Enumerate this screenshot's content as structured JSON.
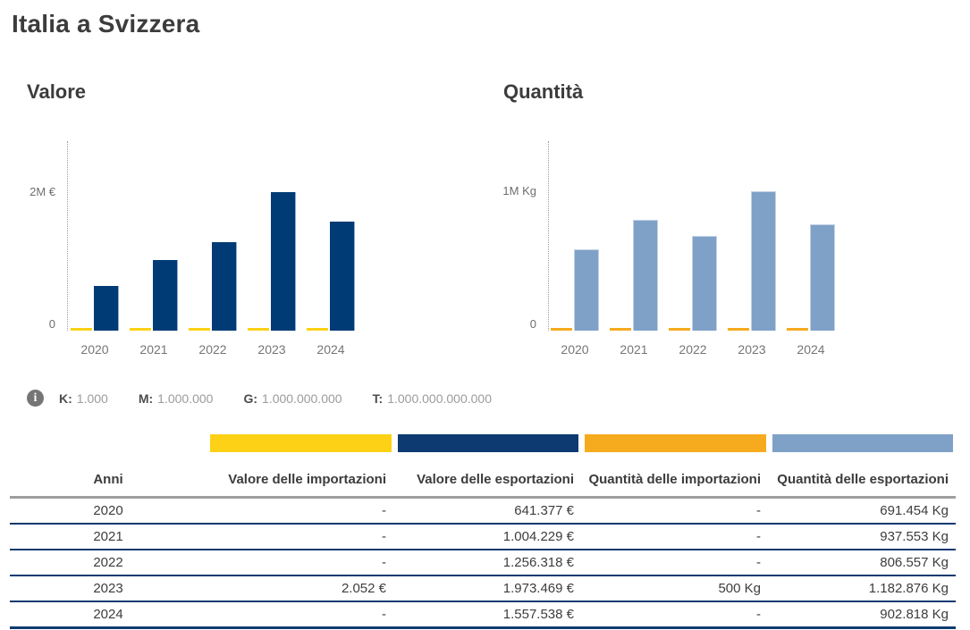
{
  "page": {
    "title": "Italia a Svizzera"
  },
  "chart_data": [
    {
      "type": "bar",
      "title": "Valore",
      "categories": [
        "2020",
        "2021",
        "2022",
        "2023",
        "2024"
      ],
      "series": [
        {
          "name": "Valore delle importazioni",
          "color": "#fcd116",
          "values": [
            null,
            null,
            null,
            2052,
            null
          ]
        },
        {
          "name": "Valore delle esportazioni",
          "color": "#003b76",
          "values": [
            641377,
            1004229,
            1256318,
            1973469,
            1557538
          ]
        }
      ],
      "y_axis": {
        "max_label": "2M €",
        "zero_label": "0",
        "unit": "€",
        "min": 0
      },
      "grid": false,
      "legend_position": "none"
    },
    {
      "type": "bar",
      "title": "Quantità",
      "categories": [
        "2020",
        "2021",
        "2022",
        "2023",
        "2024"
      ],
      "series": [
        {
          "name": "Quantità delle importazioni",
          "color": "#f6ab1f",
          "values": [
            null,
            null,
            null,
            500,
            null
          ]
        },
        {
          "name": "Quantità delle esportazioni",
          "color": "#7fa1c8",
          "values": [
            691454,
            937553,
            806557,
            1182876,
            902818
          ]
        }
      ],
      "y_axis": {
        "max_label": "1M Kg",
        "zero_label": "0",
        "unit": "Kg",
        "min": 0
      },
      "grid": false,
      "legend_position": "none"
    }
  ],
  "info": {
    "icon": "info-icon",
    "items": [
      {
        "key": "K:",
        "value": "1.000"
      },
      {
        "key": "M:",
        "value": "1.000.000"
      },
      {
        "key": "G:",
        "value": "1.000.000.000"
      },
      {
        "key": "T:",
        "value": "1.000.000.000.000"
      }
    ]
  },
  "table": {
    "columns": [
      {
        "label": "Anni",
        "swatch": null
      },
      {
        "label": "Valore delle importazioni",
        "swatch": "#fcd116"
      },
      {
        "label": "Valore delle esportazioni",
        "swatch": "#0d3a70"
      },
      {
        "label": "Quantità delle importazioni",
        "swatch": "#f6ab1f"
      },
      {
        "label": "Quantità delle esportazioni",
        "swatch": "#7fa1c8"
      }
    ],
    "rows": [
      [
        "2020",
        "-",
        "641.377 €",
        "-",
        "691.454 Kg"
      ],
      [
        "2021",
        "-",
        "1.004.229 €",
        "-",
        "937.553 Kg"
      ],
      [
        "2022",
        "-",
        "1.256.318 €",
        "-",
        "806.557 Kg"
      ],
      [
        "2023",
        "2.052 €",
        "1.973.469 €",
        "500 Kg",
        "1.182.876 Kg"
      ],
      [
        "2024",
        "-",
        "1.557.538 €",
        "-",
        "902.818 Kg"
      ]
    ]
  }
}
